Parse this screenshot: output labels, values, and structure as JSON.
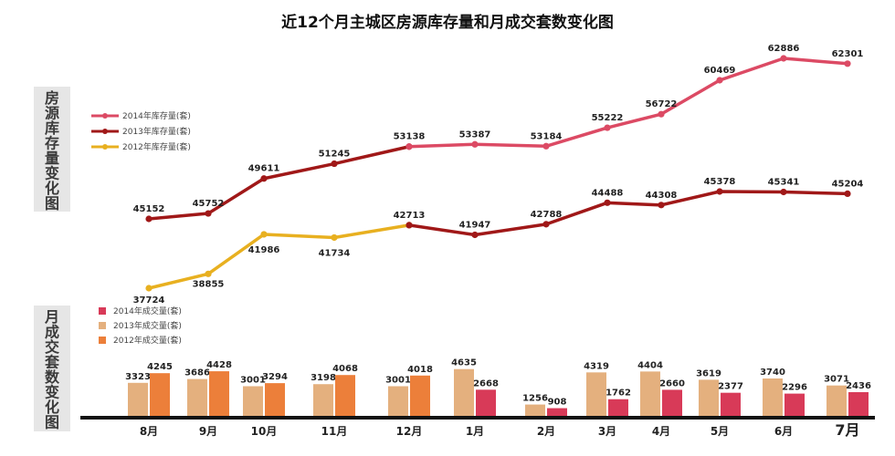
{
  "chart_data": [
    {
      "type": "line",
      "title": "近12个月主城区房源库存量和月成交套数变化图",
      "side_label": "房源库存量变化图",
      "categories": [
        "8月",
        "9月",
        "10月",
        "11月",
        "12月",
        "1月",
        "2月",
        "3月",
        "4月",
        "5月",
        "6月",
        "7月"
      ],
      "legend": [
        "2014年库存量(套)",
        "2013年库存量(套)",
        "2012年库存量(套)"
      ],
      "legend_position": "top-left",
      "series": [
        {
          "name": "2012年库存量(套)",
          "color": "#e8b020",
          "points": [
            [
              0,
              37724
            ],
            [
              1,
              38855
            ],
            [
              2,
              41986
            ],
            [
              3,
              41734
            ],
            [
              4,
              42713
            ]
          ]
        },
        {
          "name": "2013年库存量(套)",
          "color": "#a01818",
          "points": [
            [
              4,
              42713
            ],
            [
              5,
              41947
            ],
            [
              6,
              42788
            ],
            [
              7,
              44488
            ],
            [
              8,
              44308
            ],
            [
              9,
              45378
            ],
            [
              10,
              45341
            ],
            [
              11,
              45204
            ]
          ]
        },
        {
          "name": "2013年库存量(套)",
          "color": "#a01818",
          "points": [
            [
              0,
              45152
            ],
            [
              1,
              45752
            ],
            [
              2,
              49611
            ],
            [
              3,
              51245
            ],
            [
              4,
              53138
            ]
          ]
        },
        {
          "name": "2014年库存量(套)",
          "color": "#dc4a64",
          "points": [
            [
              4,
              53138
            ],
            [
              5,
              53387
            ],
            [
              6,
              53184
            ],
            [
              7,
              55222
            ],
            [
              8,
              56722
            ],
            [
              9,
              60469
            ],
            [
              10,
              62886
            ],
            [
              11,
              62301
            ]
          ]
        }
      ],
      "labels": [
        {
          "value": "37724"
        },
        {
          "value": "38855"
        },
        {
          "value": "41986"
        },
        {
          "value": "41734"
        },
        {
          "value": "42713"
        },
        {
          "value": "41947"
        },
        {
          "value": "42788"
        },
        {
          "value": "44488"
        },
        {
          "value": "44308"
        },
        {
          "value": "45378"
        },
        {
          "value": "45341"
        },
        {
          "value": "45204"
        },
        {
          "value": "45152"
        },
        {
          "value": "45752"
        },
        {
          "value": "49611"
        },
        {
          "value": "51245"
        },
        {
          "value": "53138"
        },
        {
          "value": "53387"
        },
        {
          "value": "53184"
        },
        {
          "value": "55222"
        },
        {
          "value": "56722"
        },
        {
          "value": "60469"
        },
        {
          "value": "62886"
        },
        {
          "value": "62301"
        }
      ]
    },
    {
      "type": "bar",
      "side_label": "月成交套数变化图",
      "categories": [
        "8月",
        "9月",
        "10月",
        "11月",
        "12月",
        "1月",
        "2月",
        "3月",
        "4月",
        "5月",
        "6月",
        "7月"
      ],
      "legend": [
        "2014年成交量(套)",
        "2013年成交量(套)",
        "2012年成交量(套)"
      ],
      "legend_position": "top-left",
      "series": [
        {
          "name": "2013年成交量(套)",
          "color": "#e4b07e",
          "values": [
            3323,
            3686,
            3001,
            3198,
            3001,
            4635,
            1256,
            4319,
            4404,
            3619,
            3740,
            3071
          ]
        },
        {
          "name": "2012年成交量(套)",
          "color": "#ec7f3a",
          "values": [
            4245,
            4428,
            3294,
            4068,
            4018,
            null,
            null,
            null,
            null,
            null,
            null,
            null
          ]
        },
        {
          "name": "2014年成交量(套)",
          "color": "#d83a58",
          "values": [
            null,
            null,
            null,
            null,
            null,
            2668,
            908,
            1762,
            2660,
            2377,
            2296,
            2436
          ]
        }
      ]
    }
  ],
  "colors": {
    "accent_2014": "#dc4a64",
    "accent_2013": "#a01818",
    "accent_2012": "#e8b020"
  }
}
